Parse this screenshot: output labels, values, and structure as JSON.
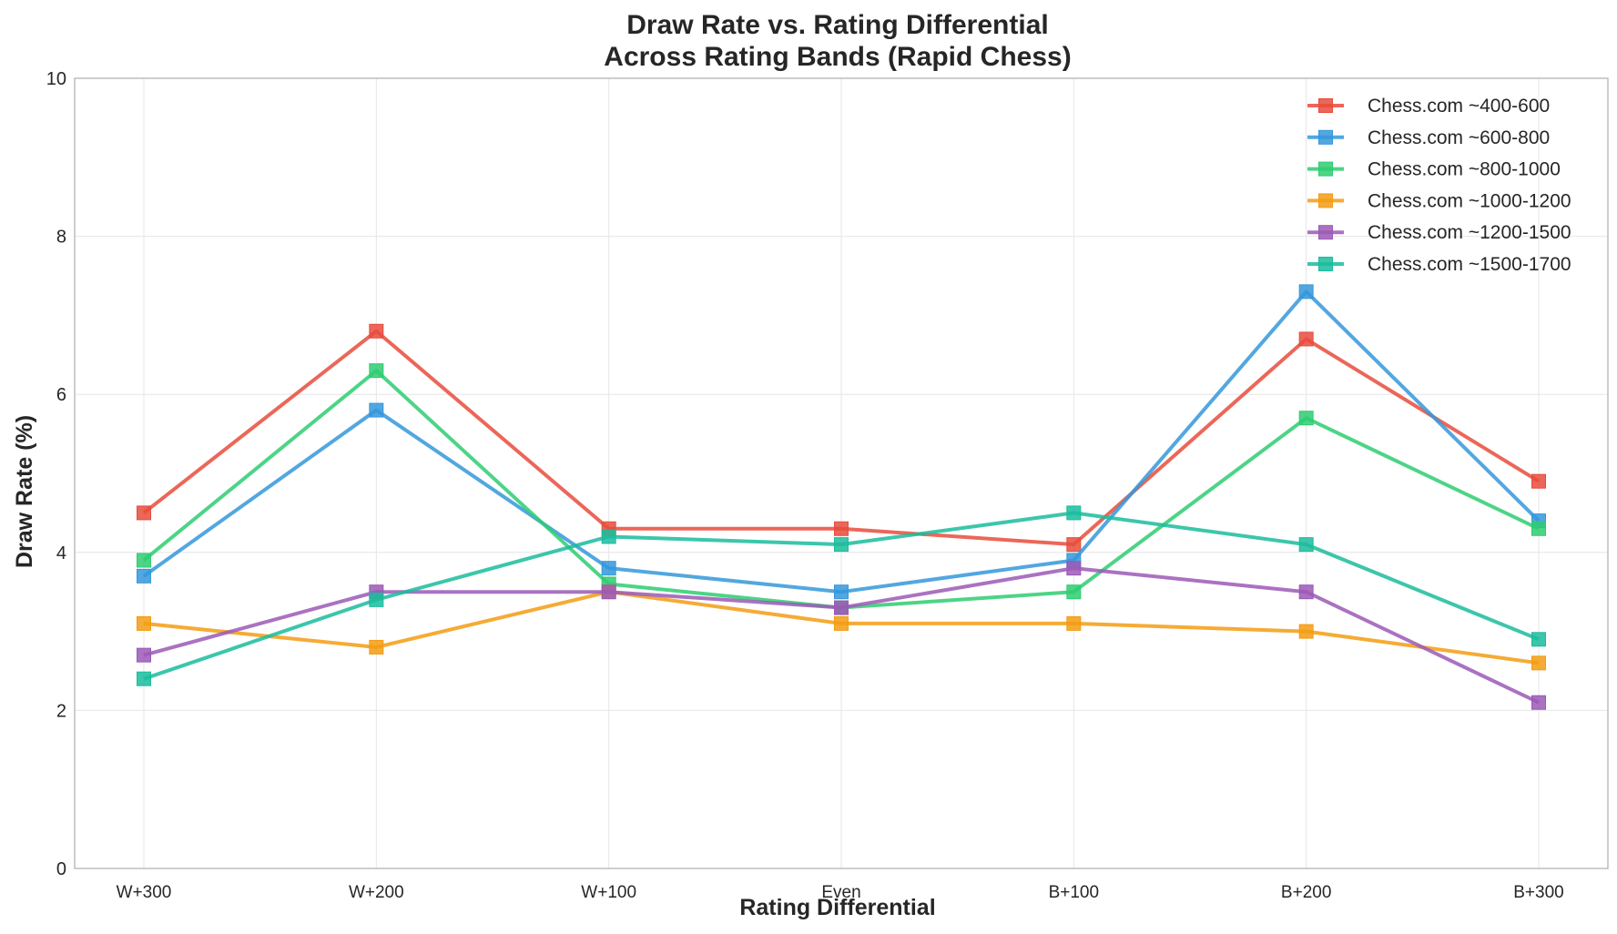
{
  "chart_data": {
    "type": "line",
    "title": "Draw Rate vs. Rating Differential",
    "subtitle": "Across Rating Bands (Rapid Chess)",
    "xlabel": "Rating Differential",
    "ylabel": "Draw Rate (%)",
    "categories": [
      "W+300",
      "W+200",
      "W+100",
      "Even",
      "B+100",
      "B+200",
      "B+300"
    ],
    "ylim": [
      0,
      10
    ],
    "yticks": [
      0,
      2,
      4,
      6,
      8,
      10
    ],
    "grid": true,
    "legend_position": "top-right",
    "marker": "square",
    "series": [
      {
        "name": "Chess.com ~400-600",
        "color": "#e74c3c",
        "values": [
          4.5,
          6.8,
          4.3,
          4.3,
          4.1,
          6.7,
          4.9
        ]
      },
      {
        "name": "Chess.com ~600-800",
        "color": "#3498db",
        "values": [
          3.7,
          5.8,
          3.8,
          3.5,
          3.9,
          7.3,
          4.4
        ]
      },
      {
        "name": "Chess.com ~800-1000",
        "color": "#2ecc71",
        "values": [
          3.9,
          6.3,
          3.6,
          3.3,
          3.5,
          5.7,
          4.3
        ]
      },
      {
        "name": "Chess.com ~1000-1200",
        "color": "#f39c12",
        "values": [
          3.1,
          2.8,
          3.5,
          3.1,
          3.1,
          3.0,
          2.6
        ]
      },
      {
        "name": "Chess.com ~1200-1500",
        "color": "#9b59b6",
        "values": [
          2.7,
          3.5,
          3.5,
          3.3,
          3.8,
          3.5,
          2.1
        ]
      },
      {
        "name": "Chess.com ~1500-1700",
        "color": "#1abc9c",
        "values": [
          2.4,
          3.4,
          4.2,
          4.1,
          4.5,
          4.1,
          2.9
        ]
      }
    ]
  }
}
